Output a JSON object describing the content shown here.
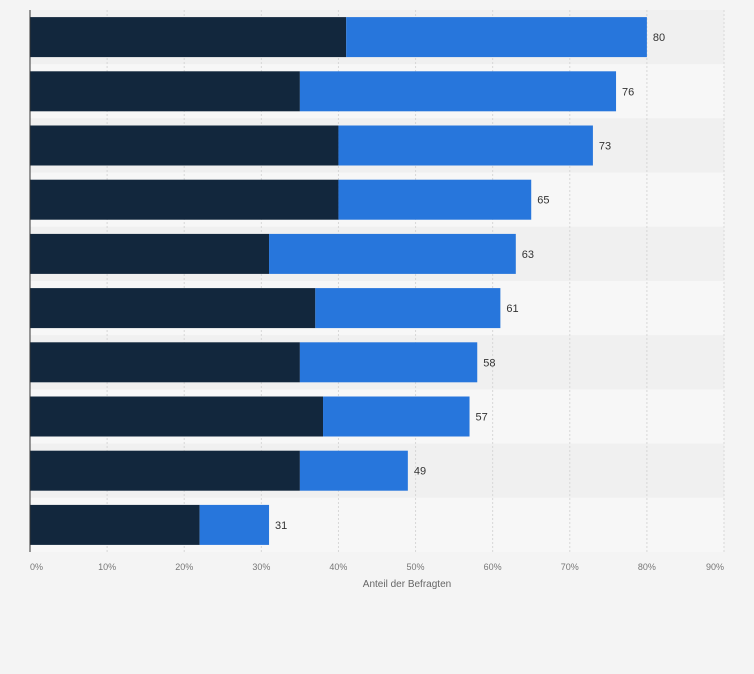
{
  "chart_data": {
    "type": "bar",
    "orientation": "horizontal",
    "stacked": true,
    "xlabel": "Anteil der Befragten",
    "ylabel": "",
    "xlim": [
      0,
      90
    ],
    "x_ticks": [
      "0%",
      "10%",
      "20%",
      "30%",
      "40%",
      "50%",
      "60%",
      "70%",
      "80%",
      "90%"
    ],
    "grid": true,
    "colors": {
      "series_1": "#12273d",
      "series_2": "#2776dc",
      "band_a": "#f0f0f0",
      "band_b": "#f7f7f7",
      "grid": "#d7d7d7"
    },
    "series": [
      {
        "name": "series_1",
        "values": [
          41,
          35,
          40,
          40,
          31,
          37,
          35,
          38,
          35,
          22
        ]
      },
      {
        "name": "series_2",
        "values": [
          39,
          41,
          33,
          25,
          32,
          24,
          23,
          19,
          14,
          9
        ]
      }
    ],
    "totals": [
      "80",
      "76",
      "73",
      "65",
      "63",
      "61",
      "58",
      "57",
      "49",
      "31"
    ]
  }
}
